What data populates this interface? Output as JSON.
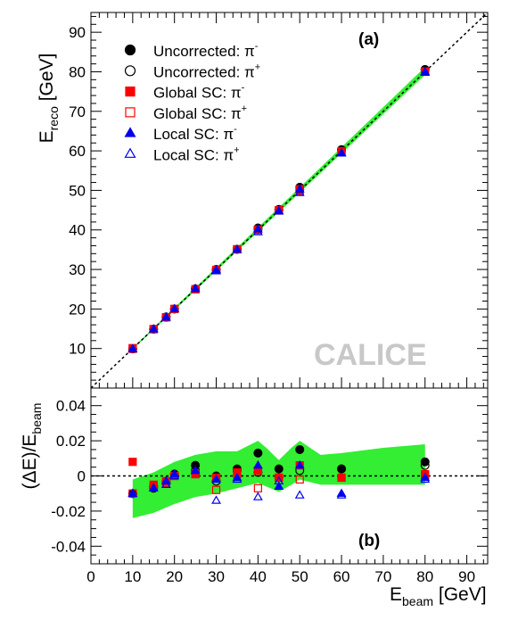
{
  "chart_data": [
    {
      "type": "scatter",
      "panel_label": "(a)",
      "watermark": "CALICE",
      "ylabel_main": "E",
      "ylabel_sub": "reco",
      "ylabel_unit": " [GeV]",
      "xlim": [
        0,
        95
      ],
      "ylim": [
        0,
        95
      ],
      "yticks": [
        10,
        20,
        30,
        40,
        50,
        60,
        70,
        80,
        90
      ],
      "legend_position": "top-left",
      "reference_line": "E_reco = E_beam (dashed diagonal)",
      "band_color": "#33ee33",
      "x": [
        10,
        15,
        18,
        20,
        25,
        30,
        35,
        40,
        45,
        50,
        60,
        80
      ],
      "band": {
        "x": [
          10,
          80
        ],
        "lower": [
          9.8,
          79.2
        ],
        "upper": [
          10.2,
          81.2
        ]
      },
      "series": [
        {
          "name_main": "Uncorrected:",
          "name_particle": "π",
          "name_charge": "-",
          "marker": "circle",
          "filled": true,
          "color": "#000000",
          "values": [
            9.9,
            14.9,
            18.0,
            20.0,
            25.1,
            30.0,
            35.1,
            40.5,
            45.2,
            50.8,
            60.3,
            80.6
          ]
        },
        {
          "name_main": "Uncorrected:",
          "name_particle": "π",
          "name_charge": "+",
          "marker": "circle",
          "filled": false,
          "color": "#000000",
          "values": [
            9.9,
            14.9,
            17.9,
            20.0,
            25.1,
            29.9,
            35.1,
            40.1,
            45.0,
            50.2,
            60.2,
            80.5
          ]
        },
        {
          "name_main": "Global SC:",
          "name_particle": "π",
          "name_charge": "-",
          "marker": "square",
          "filled": true,
          "color": "#ff0000",
          "values": [
            10.1,
            14.9,
            17.9,
            20.0,
            25.0,
            29.9,
            35.1,
            40.1,
            45.0,
            50.3,
            59.9,
            80.1
          ]
        },
        {
          "name_main": "Global SC:",
          "name_particle": "π",
          "name_charge": "+",
          "marker": "square",
          "filled": false,
          "color": "#ff0000",
          "values": [
            9.9,
            14.9,
            17.9,
            20.0,
            25.0,
            29.8,
            35.1,
            39.7,
            44.9,
            49.9,
            59.9,
            80.0
          ]
        },
        {
          "name_main": "Local SC:",
          "name_particle": "π",
          "name_charge": "-",
          "marker": "triangle",
          "filled": true,
          "color": "#0000ee",
          "values": [
            9.9,
            14.9,
            17.9,
            20.0,
            25.1,
            29.9,
            35.0,
            40.2,
            44.7,
            50.3,
            59.4,
            80.0
          ]
        },
        {
          "name_main": "Local SC:",
          "name_particle": "π",
          "name_charge": "+",
          "marker": "triangle",
          "filled": false,
          "color": "#0000ee",
          "values": [
            9.9,
            14.9,
            17.9,
            20.0,
            25.1,
            29.6,
            35.0,
            39.5,
            44.8,
            49.4,
            59.4,
            79.8
          ]
        }
      ]
    },
    {
      "type": "scatter",
      "panel_label": "(b)",
      "xlabel_main": "E",
      "xlabel_sub": "beam",
      "xlabel_unit": " [GeV]",
      "ylabel_pre": "(ΔE)/E",
      "ylabel_sub": "beam",
      "xlim": [
        0,
        95
      ],
      "ylim": [
        -0.05,
        0.05
      ],
      "xticks": [
        0,
        10,
        20,
        30,
        40,
        50,
        60,
        70,
        80,
        90
      ],
      "yticks": [
        -0.04,
        -0.02,
        0,
        0.02,
        0.04
      ],
      "ytick_labels": [
        "-0.04",
        "-0.02",
        "0",
        "0.02",
        "0.04"
      ],
      "reference_line": "0 (dashed horizontal)",
      "band_color": "#33ee33",
      "x": [
        10,
        15,
        18,
        20,
        25,
        30,
        35,
        40,
        45,
        50,
        60,
        80
      ],
      "band": {
        "x": [
          10,
          15,
          20,
          25,
          30,
          35,
          40,
          42,
          45,
          48,
          50,
          55,
          60,
          70,
          80
        ],
        "upper": [
          -0.002,
          0.002,
          0.008,
          0.012,
          0.014,
          0.014,
          0.02,
          0.016,
          0.009,
          0.016,
          0.02,
          0.012,
          0.013,
          0.016,
          0.018
        ],
        "lower": [
          -0.024,
          -0.021,
          -0.016,
          -0.012,
          -0.01,
          -0.007,
          -0.004,
          -0.006,
          -0.009,
          -0.005,
          -0.002,
          -0.005,
          -0.005,
          -0.005,
          -0.005
        ]
      },
      "series": [
        {
          "name": "Uncorrected π-",
          "marker": "circle",
          "filled": true,
          "color": "#000000",
          "values": [
            -0.01,
            -0.007,
            -0.003,
            0.001,
            0.006,
            0.0,
            0.004,
            0.013,
            0.004,
            0.015,
            0.004,
            0.008
          ]
        },
        {
          "name": "Uncorrected π+",
          "marker": "circle",
          "filled": false,
          "color": "#000000",
          "values": [
            -0.01,
            -0.006,
            -0.004,
            0.001,
            0.003,
            -0.003,
            0.003,
            0.002,
            -0.001,
            0.003,
            0.004,
            0.006
          ]
        },
        {
          "name": "Global SC π-",
          "marker": "square",
          "filled": true,
          "color": "#ff0000",
          "values": [
            0.008,
            -0.005,
            -0.003,
            0.0,
            0.001,
            -0.001,
            0.002,
            0.003,
            -0.001,
            0.006,
            -0.001,
            0.001
          ]
        },
        {
          "name": "Global SC π+",
          "marker": "square",
          "filled": false,
          "color": "#ff0000",
          "values": [
            -0.01,
            -0.006,
            -0.004,
            0.0,
            0.001,
            -0.008,
            0.001,
            -0.007,
            -0.001,
            -0.002,
            -0.001,
            0.0
          ]
        },
        {
          "name": "Local SC π-",
          "marker": "triangle",
          "filled": true,
          "color": "#0000ee",
          "values": [
            -0.01,
            -0.007,
            -0.003,
            0.001,
            0.003,
            -0.002,
            -0.001,
            0.006,
            -0.006,
            0.006,
            -0.01,
            -0.001
          ]
        },
        {
          "name": "Local SC π+",
          "marker": "triangle",
          "filled": false,
          "color": "#0000ee",
          "values": [
            -0.01,
            -0.007,
            -0.005,
            0.0,
            0.003,
            -0.014,
            -0.002,
            -0.012,
            -0.003,
            -0.011,
            -0.011,
            -0.002
          ]
        }
      ]
    }
  ]
}
